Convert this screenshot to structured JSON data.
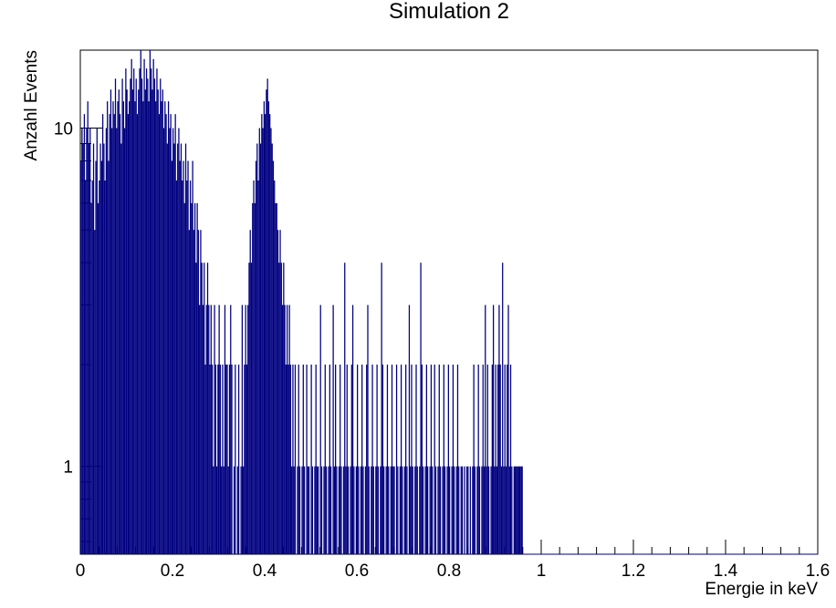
{
  "chart_data": {
    "type": "histogram",
    "title": "Simulation 2",
    "xlabel": "Energie in keV",
    "ylabel": "Anzahl Events",
    "xlim": [
      0,
      1.6
    ],
    "ylim": [
      0.55,
      17
    ],
    "yscale": "log",
    "grid": false,
    "legend": "none",
    "line_color": "#000080",
    "x_ticks": [
      {
        "value": 0,
        "label": "0"
      },
      {
        "value": 0.2,
        "label": "0.2"
      },
      {
        "value": 0.4,
        "label": "0.4"
      },
      {
        "value": 0.6,
        "label": "0.6"
      },
      {
        "value": 0.8,
        "label": "0.8"
      },
      {
        "value": 1.0,
        "label": "1"
      },
      {
        "value": 1.2,
        "label": "1.2"
      },
      {
        "value": 1.4,
        "label": "1.4"
      },
      {
        "value": 1.6,
        "label": "1.6"
      }
    ],
    "y_ticks": [
      {
        "value": 1,
        "label": "1"
      },
      {
        "value": 10,
        "label": "10"
      }
    ],
    "bin_width": 0.0025,
    "bin_start": 0,
    "bin_values": [
      8,
      10,
      9,
      11,
      7,
      10,
      12,
      9,
      10,
      6,
      7,
      9,
      5,
      8,
      10,
      6,
      7,
      9,
      8,
      11,
      9,
      7,
      10,
      12,
      8,
      11,
      13,
      10,
      12,
      11,
      14,
      10,
      12,
      13,
      11,
      9,
      14,
      12,
      10,
      15,
      13,
      11,
      12,
      14,
      16,
      13,
      15,
      12,
      14,
      11,
      13,
      15,
      17,
      14,
      12,
      16,
      13,
      15,
      14,
      12,
      17,
      15,
      13,
      16,
      14,
      12,
      15,
      13,
      11,
      14,
      12,
      13,
      10,
      12,
      11,
      9,
      12,
      10,
      11,
      8,
      10,
      9,
      11,
      7,
      9,
      10,
      8,
      9,
      7,
      8,
      6,
      9,
      7,
      8,
      5,
      7,
      6,
      8,
      5,
      6,
      4,
      6,
      5,
      3,
      5,
      4,
      3,
      4,
      2,
      3,
      4,
      3,
      2,
      3,
      2,
      1,
      3,
      2,
      1,
      2,
      3,
      2,
      1,
      2,
      1,
      3,
      2,
      2,
      1,
      2,
      3,
      2,
      0,
      1,
      2,
      0,
      1,
      2,
      0,
      1,
      3,
      1,
      2,
      3,
      2,
      3,
      4,
      5,
      4,
      6,
      7,
      6,
      8,
      9,
      7,
      10,
      9,
      11,
      10,
      12,
      11,
      13,
      14,
      12,
      11,
      10,
      9,
      8,
      7,
      6,
      6,
      5,
      4,
      5,
      4,
      3,
      4,
      3,
      2,
      3,
      2,
      3,
      2,
      1,
      2,
      1,
      2,
      0,
      1,
      2,
      1,
      0,
      1,
      2,
      1,
      0,
      2,
      1,
      1,
      0,
      2,
      1,
      0,
      1,
      2,
      1,
      1,
      0,
      3,
      1,
      0,
      1,
      2,
      1,
      0,
      1,
      2,
      1,
      0,
      3,
      1,
      2,
      1,
      0,
      1,
      2,
      1,
      0,
      1,
      4,
      1,
      2,
      1,
      0,
      1,
      2,
      3,
      1,
      0,
      1,
      2,
      1,
      0,
      1,
      2,
      1,
      0,
      1,
      2,
      3,
      1,
      0,
      1,
      2,
      1,
      0,
      1,
      2,
      1,
      0,
      1,
      4,
      2,
      1,
      0,
      1,
      2,
      1,
      0,
      1,
      2,
      1,
      1,
      0,
      2,
      1,
      0,
      1,
      2,
      1,
      0,
      1,
      2,
      1,
      0,
      3,
      1,
      2,
      1,
      0,
      1,
      2,
      1,
      0,
      1,
      4,
      2,
      1,
      0,
      1,
      2,
      1,
      0,
      1,
      2,
      1,
      0,
      2,
      1,
      0,
      1,
      2,
      1,
      0,
      1,
      2,
      1,
      0,
      1,
      2,
      1,
      0,
      1,
      2,
      1,
      0,
      1,
      2,
      1,
      0,
      1,
      1,
      0,
      1,
      0,
      1,
      1,
      0,
      1,
      0,
      1,
      2,
      1,
      0,
      1,
      2,
      1,
      0,
      1,
      2,
      1,
      3,
      1,
      2,
      1,
      0,
      1,
      2,
      3,
      1,
      2,
      1,
      2,
      3,
      2,
      1,
      4,
      1,
      2,
      1,
      2,
      3,
      1,
      2,
      1,
      0,
      1,
      1,
      1,
      1,
      1,
      1,
      1,
      1,
      0,
      0,
      0,
      0,
      0,
      0,
      0,
      0,
      0,
      0,
      0,
      0,
      0,
      0,
      0,
      0,
      0,
      0,
      0,
      0,
      0,
      0,
      0,
      0,
      0,
      0,
      0,
      0,
      0,
      0,
      0,
      0,
      0,
      0,
      0,
      0,
      0,
      0,
      0,
      0,
      0,
      0,
      0,
      0,
      0,
      0,
      0,
      0,
      0,
      0,
      0,
      0,
      0,
      0,
      0,
      0,
      0,
      0,
      0,
      0,
      0,
      0,
      0,
      0,
      0,
      0,
      0,
      0,
      0,
      0,
      0,
      0,
      0,
      0,
      0,
      0,
      0,
      0,
      0,
      0,
      0,
      0,
      0,
      0,
      0,
      0,
      0,
      0,
      0,
      0,
      0,
      0,
      0,
      0,
      0,
      0,
      0,
      0,
      0,
      0,
      0,
      0,
      0,
      0,
      0,
      0,
      0,
      0,
      0,
      0,
      0,
      0,
      0,
      0,
      0,
      0,
      0,
      0,
      0,
      0,
      0,
      0,
      0,
      0,
      0,
      0,
      0,
      0,
      0,
      0,
      0,
      0,
      0,
      0,
      0,
      0,
      0,
      0,
      0,
      0,
      0,
      0,
      0,
      0,
      0,
      0,
      0,
      0,
      0,
      0,
      0,
      0,
      0,
      0,
      0,
      0,
      0,
      0,
      0,
      0,
      0,
      0,
      0,
      0,
      0,
      0,
      0,
      0,
      0,
      0,
      0,
      0,
      0,
      0,
      0,
      0,
      0,
      0,
      0,
      0,
      0,
      0,
      0,
      0,
      0,
      0,
      0,
      0,
      0,
      0,
      0,
      0,
      0,
      0,
      0,
      0,
      0,
      0,
      0,
      0,
      0,
      0,
      0,
      0,
      0,
      0,
      0,
      0,
      0,
      0,
      0,
      0,
      0,
      0,
      0,
      0,
      0,
      0,
      0,
      0,
      0,
      0,
      0,
      0,
      0,
      0,
      0,
      0,
      0,
      0,
      0,
      0,
      0,
      0,
      0,
      0,
      0,
      0,
      0,
      0,
      0,
      0,
      0,
      0,
      0,
      0,
      0,
      0,
      0,
      0,
      0,
      0,
      0,
      0,
      0,
      0
    ]
  }
}
